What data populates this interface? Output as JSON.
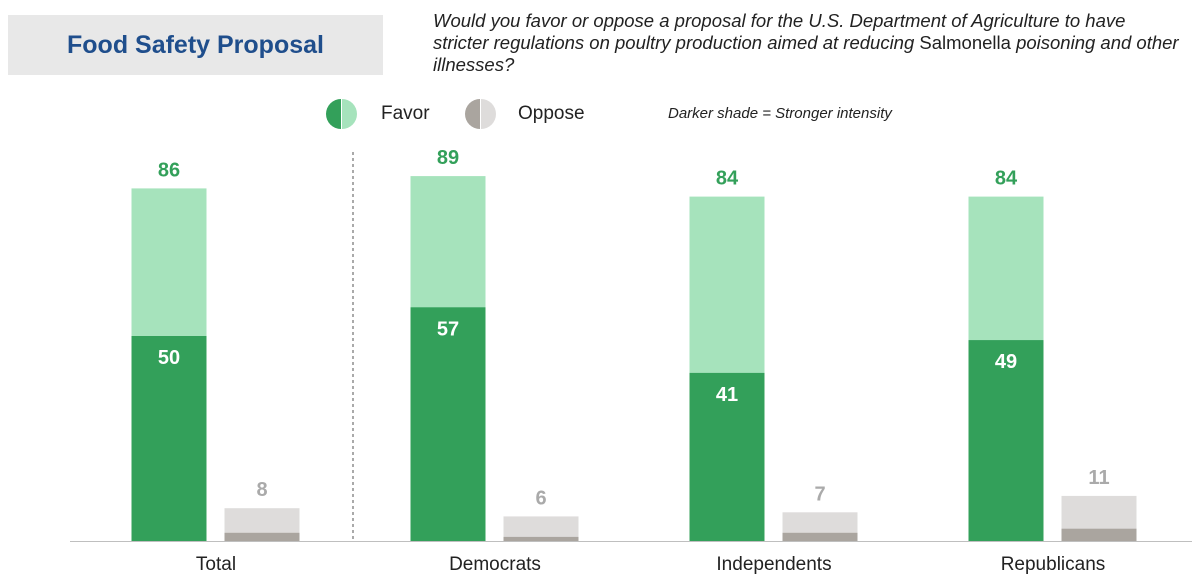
{
  "title": "Food Safety Proposal",
  "question": {
    "part1": "Would you favor or oppose a proposal for the U.S. Department of Agriculture to have stricter regulations on poultry production aimed at reducing ",
    "part2": "Salmonella",
    "part3": " poisoning and other illnesses?"
  },
  "legend": {
    "favor": "Favor",
    "oppose": "Oppose",
    "note": "Darker shade = Stronger intensity"
  },
  "colors": {
    "favor_strong": "#33a05a",
    "favor_total": "#a6e3bc",
    "oppose_strong": "#aaa59f",
    "oppose_total": "#dedcdb",
    "favor_label": "#33a05a",
    "oppose_label": "#aaaaaa"
  },
  "chart_data": {
    "type": "bar",
    "categories": [
      "Total",
      "Democrats",
      "Independents",
      "Republicans"
    ],
    "series": [
      {
        "name": "Favor",
        "values": [
          86,
          89,
          84,
          84
        ]
      },
      {
        "name": "Oppose",
        "values": [
          8,
          6,
          7,
          11
        ]
      }
    ],
    "strong_intensity": {
      "favor": [
        50,
        57,
        41,
        49
      ],
      "oppose": [
        2,
        1,
        2,
        3
      ]
    },
    "ylim": [
      0,
      100
    ],
    "grid": false,
    "legend_position": "top"
  }
}
